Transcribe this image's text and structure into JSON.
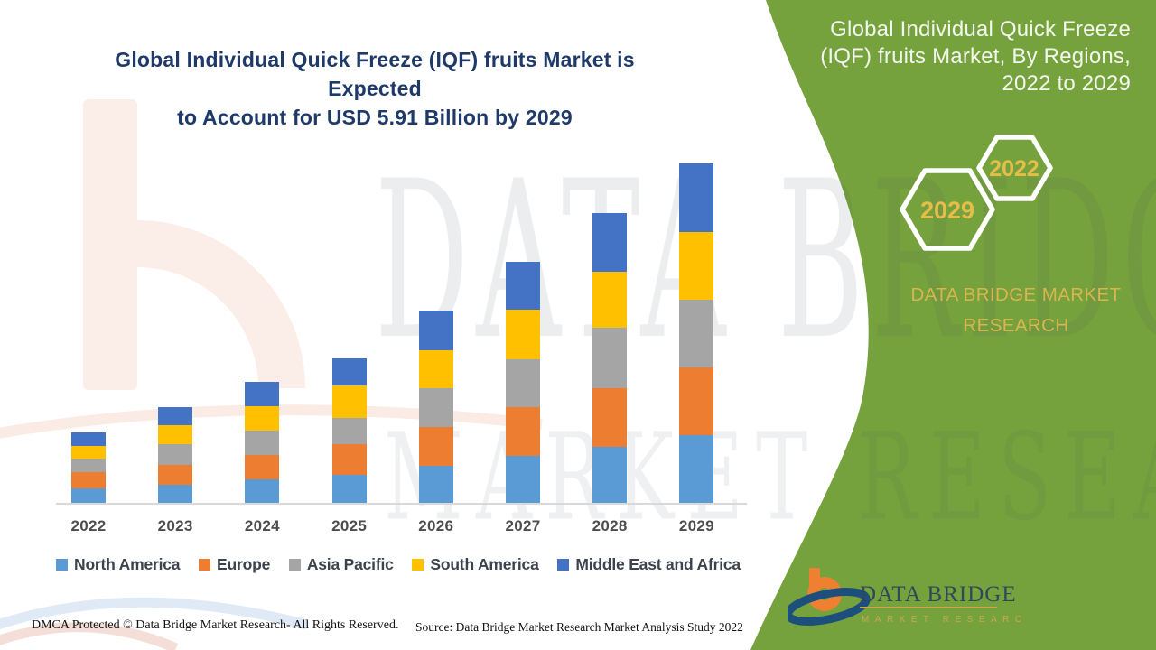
{
  "header": {
    "title_lines": [
      "Global Individual Quick Freeze (IQF) fruits Market is Expected",
      "to Account for USD 5.91 Billion by 2029"
    ]
  },
  "panel": {
    "title_lines": [
      "Global Individual Quick Freeze",
      "(IQF) fruits Market, By Regions,",
      "2022 to 2029"
    ],
    "hexagons": [
      {
        "label": "2029"
      },
      {
        "label": "2022"
      }
    ],
    "brand_lines": [
      "DATA BRIDGE MARKET",
      "RESEARCH"
    ],
    "colors": {
      "panel_green": "#76a23d",
      "hexagon_stroke": "#ffffff",
      "hexagon_year_text": "#e7bd4a",
      "brand_gold": "#d9b54e"
    }
  },
  "chart_data": {
    "type": "bar",
    "stacked": true,
    "title": "Global Individual Quick Freeze (IQF) fruits Market is Expected to Account for USD 5.91 Billion by 2029",
    "unit": "USD Billion",
    "categories": [
      "2022",
      "2023",
      "2024",
      "2025",
      "2026",
      "2027",
      "2028",
      "2029"
    ],
    "series": [
      {
        "name": "North America",
        "color": "#5B9BD5",
        "values": [
          0.25,
          0.32,
          0.41,
          0.49,
          0.65,
          0.82,
          0.98,
          1.18
        ]
      },
      {
        "name": "Europe",
        "color": "#ED7D31",
        "values": [
          0.28,
          0.35,
          0.43,
          0.54,
          0.68,
          0.85,
          1.02,
          1.18
        ]
      },
      {
        "name": "Asia Pacific",
        "color": "#A5A5A5",
        "values": [
          0.24,
          0.36,
          0.43,
          0.46,
          0.68,
          0.84,
          1.06,
          1.18
        ]
      },
      {
        "name": "South America",
        "color": "#FFC000",
        "values": [
          0.22,
          0.33,
          0.43,
          0.57,
          0.66,
          0.87,
          0.98,
          1.18
        ]
      },
      {
        "name": "Middle East and Africa",
        "color": "#4472C4",
        "values": [
          0.24,
          0.32,
          0.43,
          0.47,
          0.69,
          0.84,
          1.02,
          1.19
        ]
      }
    ],
    "totals": [
      1.23,
      1.68,
      2.13,
      2.53,
      3.36,
      4.22,
      5.06,
      5.91
    ],
    "xlabel": "",
    "ylabel": "",
    "ylim": [
      0,
      5.91
    ],
    "grid": false,
    "legend_position": "bottom"
  },
  "footer": {
    "dmca": "DMCA Protected © Data Bridge Market Research- All Rights Reserved.",
    "source": "Source: Data Bridge Market Research Market Analysis Study 2022"
  },
  "logo": {
    "name": "DATA BRIDGE",
    "subtitle": "MARKET RESEARCH"
  },
  "watermarks": {
    "line1": "DATA BRIDGE",
    "line2": "MARKET RESEARCH"
  }
}
